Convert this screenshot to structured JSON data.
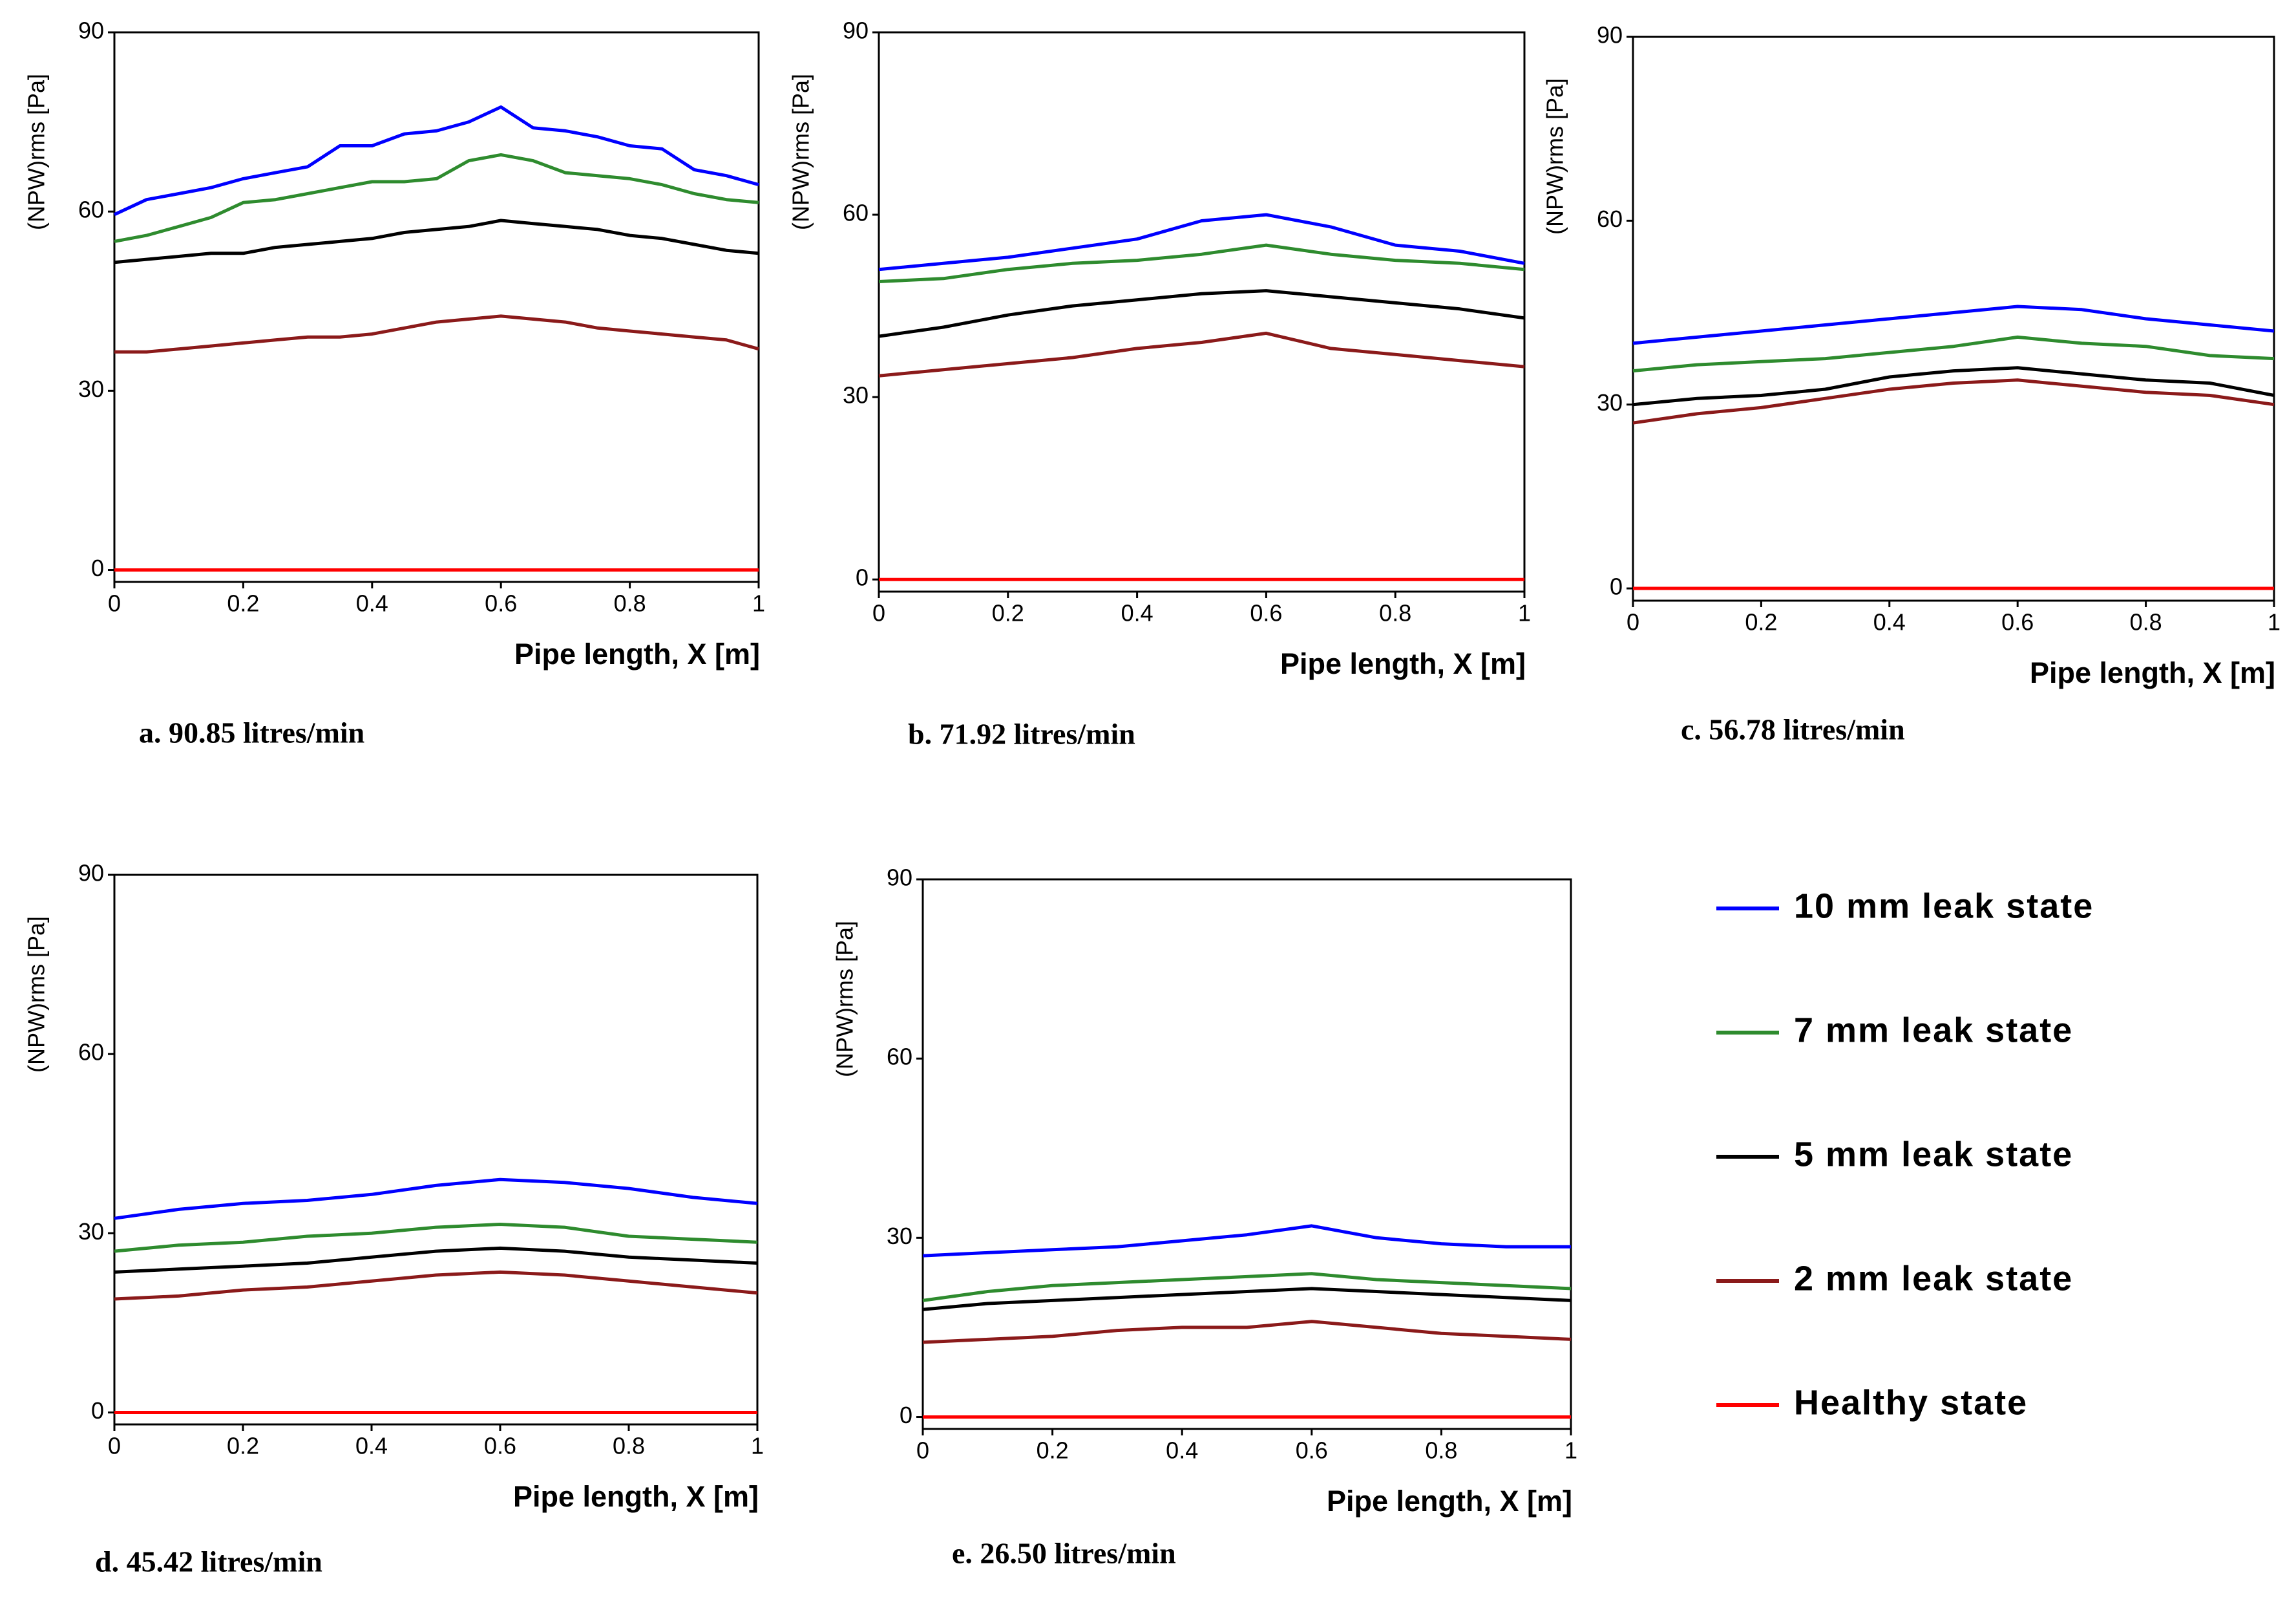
{
  "chart_data": [
    {
      "type": "line",
      "caption": "a. 90.85 litres/min",
      "xlabel": "Pipe length, X [m]",
      "ylabel": "(NPW)rms [Pa]",
      "xlim": [
        0,
        1
      ],
      "xticks": [
        0,
        0.2,
        0.4,
        0.6,
        0.8,
        1
      ],
      "ylim": [
        -2,
        90
      ],
      "yticks": [
        0,
        30,
        60,
        90
      ],
      "x": [
        0,
        0.05,
        0.1,
        0.15,
        0.2,
        0.25,
        0.3,
        0.35,
        0.4,
        0.45,
        0.5,
        0.55,
        0.6,
        0.65,
        0.7,
        0.75,
        0.8,
        0.85,
        0.9,
        0.95,
        1
      ],
      "series": [
        {
          "name": "10 mm leak state",
          "color": "#0000ff",
          "values": [
            59.5,
            62,
            63,
            64,
            65.5,
            66.5,
            67.5,
            71,
            71,
            73,
            73.5,
            75,
            77.5,
            74,
            73.5,
            72.5,
            71,
            70.5,
            67,
            66,
            64.5
          ]
        },
        {
          "name": "7 mm leak state",
          "color": "#2e8b2e",
          "values": [
            55,
            56,
            57.5,
            59,
            61.5,
            62,
            63,
            64,
            65,
            65,
            65.5,
            68.5,
            69.5,
            68.5,
            66.5,
            66,
            65.5,
            64.5,
            63,
            62,
            61.5
          ]
        },
        {
          "name": "5 mm leak state",
          "color": "#000000",
          "values": [
            51.5,
            52,
            52.5,
            53,
            53,
            54,
            54.5,
            55,
            55.5,
            56.5,
            57,
            57.5,
            58.5,
            58,
            57.5,
            57,
            56,
            55.5,
            54.5,
            53.5,
            53
          ]
        },
        {
          "name": "2 mm leak state",
          "color": "#8b1a1a",
          "values": [
            36.5,
            36.5,
            37,
            37.5,
            38,
            38.5,
            39,
            39,
            39.5,
            40.5,
            41.5,
            42,
            42.5,
            42,
            41.5,
            40.5,
            40,
            39.5,
            39,
            38.5,
            37
          ]
        },
        {
          "name": "Healthy state",
          "color": "#ff0000",
          "values": [
            0,
            0,
            0,
            0,
            0,
            0,
            0,
            0,
            0,
            0,
            0,
            0,
            0,
            0,
            0,
            0,
            0,
            0,
            0,
            0,
            0
          ]
        }
      ]
    },
    {
      "type": "line",
      "caption": "b. 71.92 litres/min",
      "xlabel": "Pipe length, X [m]",
      "ylabel": "(NPW)rms [Pa]",
      "xlim": [
        0,
        1
      ],
      "xticks": [
        0,
        0.2,
        0.4,
        0.6,
        0.8,
        1
      ],
      "ylim": [
        -2,
        90
      ],
      "yticks": [
        0,
        30,
        60,
        90
      ],
      "x": [
        0,
        0.1,
        0.2,
        0.3,
        0.4,
        0.5,
        0.6,
        0.7,
        0.8,
        0.9,
        1
      ],
      "series": [
        {
          "values": [
            51,
            52,
            53,
            54.5,
            56,
            59,
            60,
            58,
            55,
            54,
            52
          ]
        },
        {
          "values": [
            49,
            49.5,
            51,
            52,
            52.5,
            53.5,
            55,
            53.5,
            52.5,
            52,
            51
          ]
        },
        {
          "values": [
            40,
            41.5,
            43.5,
            45,
            46,
            47,
            47.5,
            46.5,
            45.5,
            44.5,
            43
          ]
        },
        {
          "values": [
            33.5,
            34.5,
            35.5,
            36.5,
            38,
            39,
            40.5,
            38,
            37,
            36,
            35
          ]
        },
        {
          "values": [
            0,
            0,
            0,
            0,
            0,
            0,
            0,
            0,
            0,
            0,
            0
          ]
        }
      ]
    },
    {
      "type": "line",
      "caption": "c. 56.78 litres/min",
      "xlabel": "Pipe length, X [m]",
      "ylabel": "(NPW)rms [Pa]",
      "xlim": [
        0,
        1
      ],
      "xticks": [
        0,
        0.2,
        0.4,
        0.6,
        0.8,
        1
      ],
      "ylim": [
        -2,
        90
      ],
      "yticks": [
        0,
        30,
        60,
        90
      ],
      "x": [
        0,
        0.1,
        0.2,
        0.3,
        0.4,
        0.5,
        0.6,
        0.7,
        0.8,
        0.9,
        1
      ],
      "series": [
        {
          "values": [
            40,
            41,
            42,
            43,
            44,
            45,
            46,
            45.5,
            44,
            43,
            42
          ]
        },
        {
          "values": [
            35.5,
            36.5,
            37,
            37.5,
            38.5,
            39.5,
            41,
            40,
            39.5,
            38,
            37.5
          ]
        },
        {
          "values": [
            30,
            31,
            31.5,
            32.5,
            34.5,
            35.5,
            36,
            35,
            34,
            33.5,
            31.5
          ]
        },
        {
          "values": [
            27,
            28.5,
            29.5,
            31,
            32.5,
            33.5,
            34,
            33,
            32,
            31.5,
            30
          ]
        },
        {
          "values": [
            0,
            0,
            0,
            0,
            0,
            0,
            0,
            0,
            0,
            0,
            0
          ]
        }
      ]
    },
    {
      "type": "line",
      "caption": "d. 45.42 litres/min",
      "xlabel": "Pipe length, X [m]",
      "ylabel": "(NPW)rms [Pa]",
      "xlim": [
        0,
        1
      ],
      "xticks": [
        0,
        0.2,
        0.4,
        0.6,
        0.8,
        1
      ],
      "ylim": [
        -2,
        90
      ],
      "yticks": [
        0,
        30,
        60,
        90
      ],
      "x": [
        0,
        0.1,
        0.2,
        0.3,
        0.4,
        0.5,
        0.6,
        0.7,
        0.8,
        0.9,
        1
      ],
      "series": [
        {
          "values": [
            32.5,
            34,
            35,
            35.5,
            36.5,
            38,
            39,
            38.5,
            37.5,
            36,
            35
          ]
        },
        {
          "values": [
            27,
            28,
            28.5,
            29.5,
            30,
            31,
            31.5,
            31,
            29.5,
            29,
            28.5
          ]
        },
        {
          "values": [
            23.5,
            24,
            24.5,
            25,
            26,
            27,
            27.5,
            27,
            26,
            25.5,
            25
          ]
        },
        {
          "values": [
            19,
            19.5,
            20.5,
            21,
            22,
            23,
            23.5,
            23,
            22,
            21,
            20
          ]
        },
        {
          "values": [
            0,
            0,
            0,
            0,
            0,
            0,
            0,
            0,
            0,
            0,
            0
          ]
        }
      ]
    },
    {
      "type": "line",
      "caption": "e. 26.50 litres/min",
      "xlabel": "Pipe length, X [m]",
      "ylabel": "(NPW)rms [Pa]",
      "xlim": [
        0,
        1
      ],
      "xticks": [
        0,
        0.2,
        0.4,
        0.6,
        0.8,
        1
      ],
      "ylim": [
        -2,
        90
      ],
      "yticks": [
        0,
        30,
        60,
        90
      ],
      "x": [
        0,
        0.1,
        0.2,
        0.3,
        0.4,
        0.5,
        0.6,
        0.7,
        0.8,
        0.9,
        1
      ],
      "series": [
        {
          "values": [
            27,
            27.5,
            28,
            28.5,
            29.5,
            30.5,
            32,
            30,
            29,
            28.5,
            28.5
          ]
        },
        {
          "values": [
            19.5,
            21,
            22,
            22.5,
            23,
            23.5,
            24,
            23,
            22.5,
            22,
            21.5
          ]
        },
        {
          "values": [
            18,
            19,
            19.5,
            20,
            20.5,
            21,
            21.5,
            21,
            20.5,
            20,
            19.5
          ]
        },
        {
          "values": [
            12.5,
            13,
            13.5,
            14.5,
            15,
            15,
            16,
            15,
            14,
            13.5,
            13
          ]
        },
        {
          "values": [
            0,
            0,
            0,
            0,
            0,
            0,
            0,
            0,
            0,
            0,
            0
          ]
        }
      ]
    }
  ]
}
